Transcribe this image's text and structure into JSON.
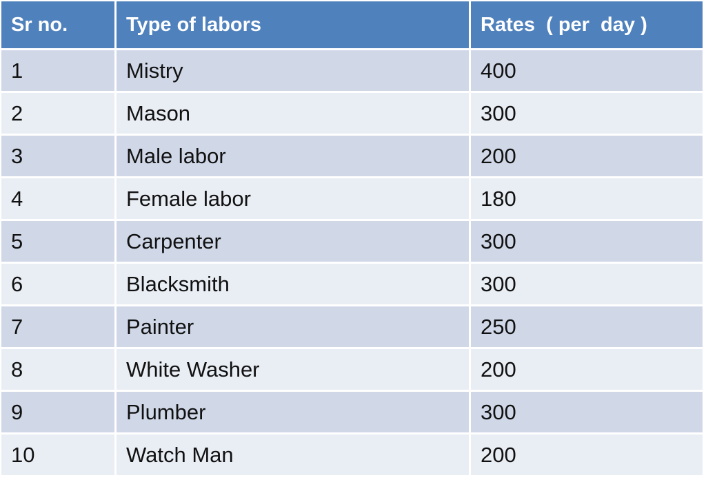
{
  "table": {
    "header": [
      "Sr no.",
      "Type of labors",
      "Rates  ( per  day )"
    ],
    "rows": [
      [
        1,
        "Mistry",
        400
      ],
      [
        2,
        "Mason",
        300
      ],
      [
        3,
        "Male labor",
        200
      ],
      [
        4,
        "Female labor",
        180
      ],
      [
        5,
        "Carpenter",
        300
      ],
      [
        6,
        "Blacksmith",
        300
      ],
      [
        7,
        "Painter",
        250
      ],
      [
        8,
        "White Washer",
        200
      ],
      [
        9,
        "Plumber",
        300
      ],
      [
        10,
        "Watch Man",
        200
      ]
    ]
  }
}
